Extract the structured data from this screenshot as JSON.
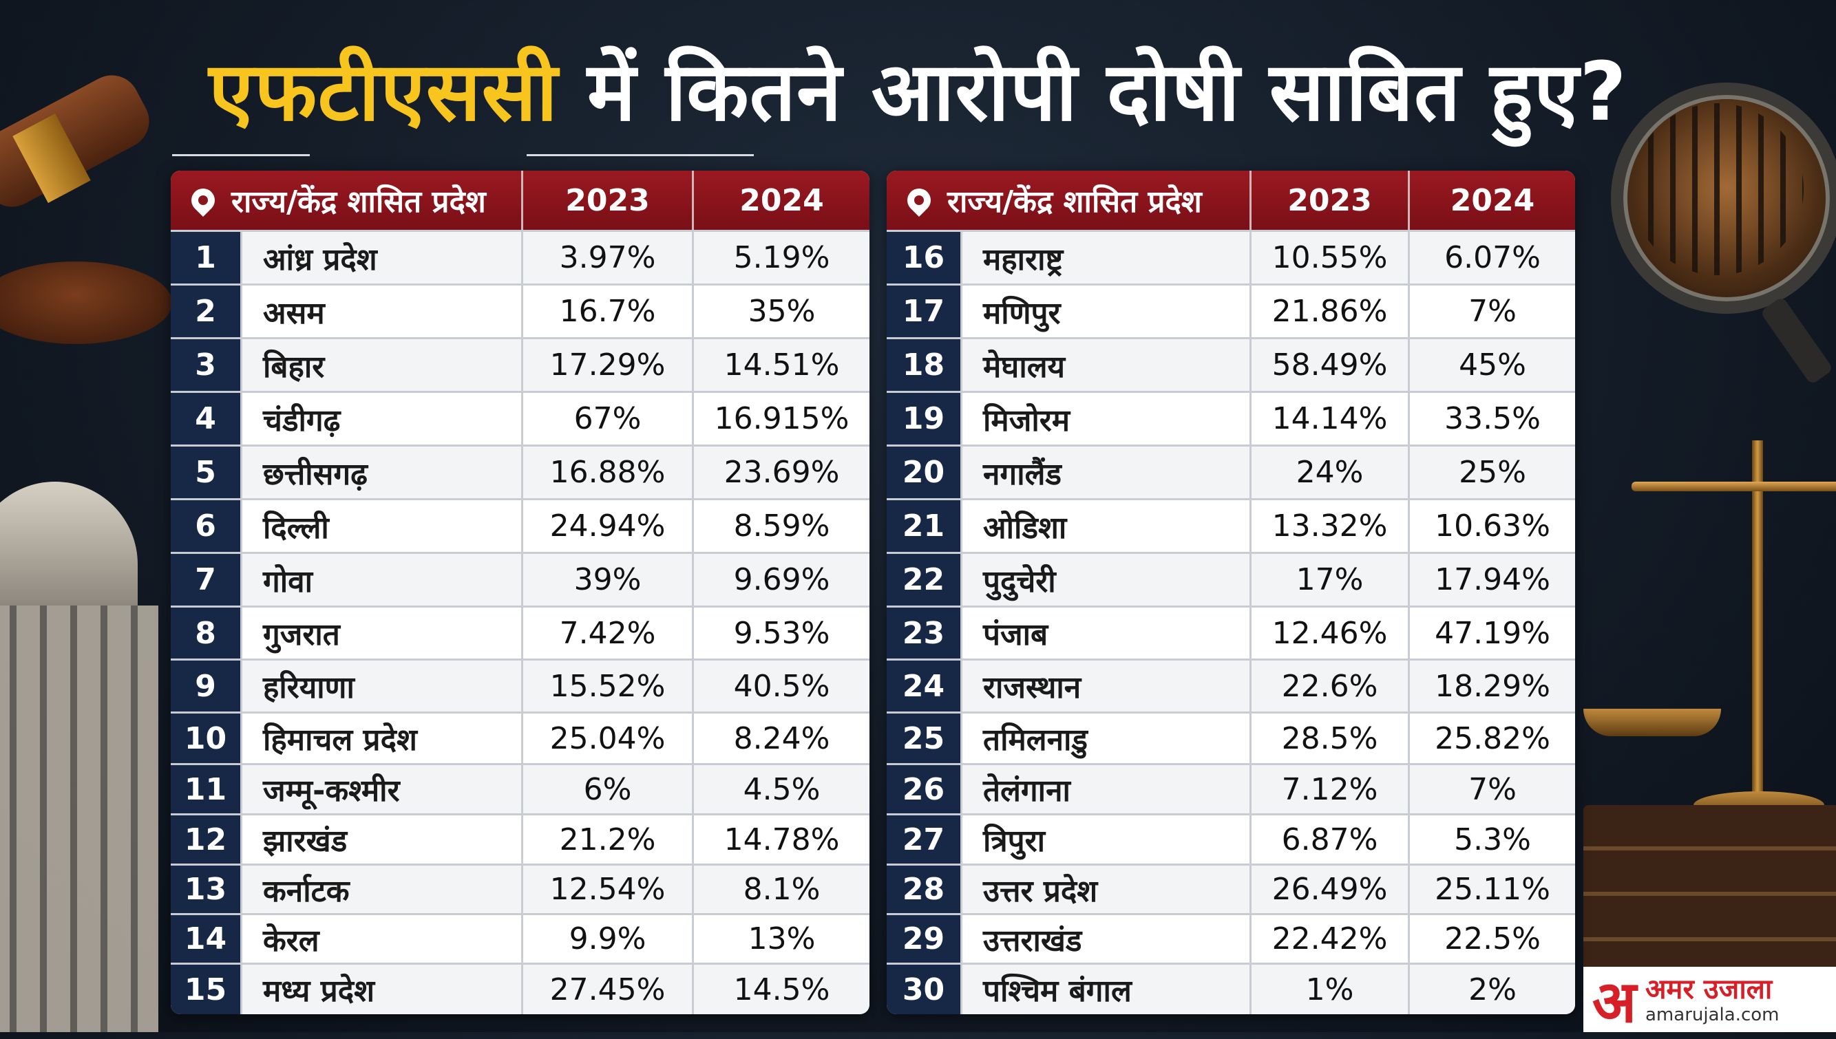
{
  "title": {
    "part1": "एफटीएससी",
    "part2": " में कितने आरोपी दोषी साबित हुए?"
  },
  "header": {
    "state": "राज्य/केंद्र शासित प्रदेश",
    "y2023": "2023",
    "y2024": "2024"
  },
  "left_rows": [
    {
      "n": "1",
      "state": "आंध्र प्रदेश",
      "v2023": "3.97%",
      "v2024": "5.19%"
    },
    {
      "n": "2",
      "state": "असम",
      "v2023": "16.7%",
      "v2024": "35%"
    },
    {
      "n": "3",
      "state": "बिहार",
      "v2023": "17.29%",
      "v2024": "14.51%"
    },
    {
      "n": "4",
      "state": "चंडीगढ़",
      "v2023": "67%",
      "v2024": "16.915%"
    },
    {
      "n": "5",
      "state": "छत्तीसगढ़",
      "v2023": "16.88%",
      "v2024": "23.69%"
    },
    {
      "n": "6",
      "state": "दिल्ली",
      "v2023": "24.94%",
      "v2024": "8.59%"
    },
    {
      "n": "7",
      "state": "गोवा",
      "v2023": "39%",
      "v2024": "9.69%"
    },
    {
      "n": "8",
      "state": "गुजरात",
      "v2023": "7.42%",
      "v2024": "9.53%"
    },
    {
      "n": "9",
      "state": "हरियाणा",
      "v2023": "15.52%",
      "v2024": "40.5%"
    },
    {
      "n": "10",
      "state": "हिमाचल प्रदेश",
      "v2023": "25.04%",
      "v2024": "8.24%"
    },
    {
      "n": "11",
      "state": "जम्मू-कश्मीर",
      "v2023": "6%",
      "v2024": "4.5%"
    },
    {
      "n": "12",
      "state": "झारखंड",
      "v2023": "21.2%",
      "v2024": "14.78%"
    },
    {
      "n": "13",
      "state": "कर्नाटक",
      "v2023": "12.54%",
      "v2024": "8.1%"
    },
    {
      "n": "14",
      "state": "केरल",
      "v2023": "9.9%",
      "v2024": "13%"
    },
    {
      "n": "15",
      "state": "मध्य प्रदेश",
      "v2023": "27.45%",
      "v2024": "14.5%"
    }
  ],
  "right_rows": [
    {
      "n": "16",
      "state": "महाराष्ट्र",
      "v2023": "10.55%",
      "v2024": "6.07%"
    },
    {
      "n": "17",
      "state": "मणिपुर",
      "v2023": "21.86%",
      "v2024": "7%"
    },
    {
      "n": "18",
      "state": "मेघालय",
      "v2023": "58.49%",
      "v2024": "45%"
    },
    {
      "n": "19",
      "state": "मिजोरम",
      "v2023": "14.14%",
      "v2024": "33.5%"
    },
    {
      "n": "20",
      "state": "नगालैंड",
      "v2023": "24%",
      "v2024": "25%"
    },
    {
      "n": "21",
      "state": "ओडिशा",
      "v2023": "13.32%",
      "v2024": "10.63%"
    },
    {
      "n": "22",
      "state": "पुदुचेरी",
      "v2023": "17%",
      "v2024": "17.94%"
    },
    {
      "n": "23",
      "state": "पंजाब",
      "v2023": "12.46%",
      "v2024": "47.19%"
    },
    {
      "n": "24",
      "state": "राजस्थान",
      "v2023": "22.6%",
      "v2024": "18.29%"
    },
    {
      "n": "25",
      "state": "तमिलनाडु",
      "v2023": "28.5%",
      "v2024": "25.82%"
    },
    {
      "n": "26",
      "state": "तेलंगाना",
      "v2023": "7.12%",
      "v2024": "7%"
    },
    {
      "n": "27",
      "state": "त्रिपुरा",
      "v2023": "6.87%",
      "v2024": "5.3%"
    },
    {
      "n": "28",
      "state": "उत्तर प्रदेश",
      "v2023": "26.49%",
      "v2024": "25.11%"
    },
    {
      "n": "29",
      "state": "उत्तराखंड",
      "v2023": "22.42%",
      "v2024": "22.5%"
    },
    {
      "n": "30",
      "state": "पश्चिम बंगाल",
      "v2023": "1%",
      "v2024": "2%"
    }
  ],
  "logo": {
    "glyph": "अ",
    "name": "अमर उजाला",
    "url": "amarujala.com"
  }
}
